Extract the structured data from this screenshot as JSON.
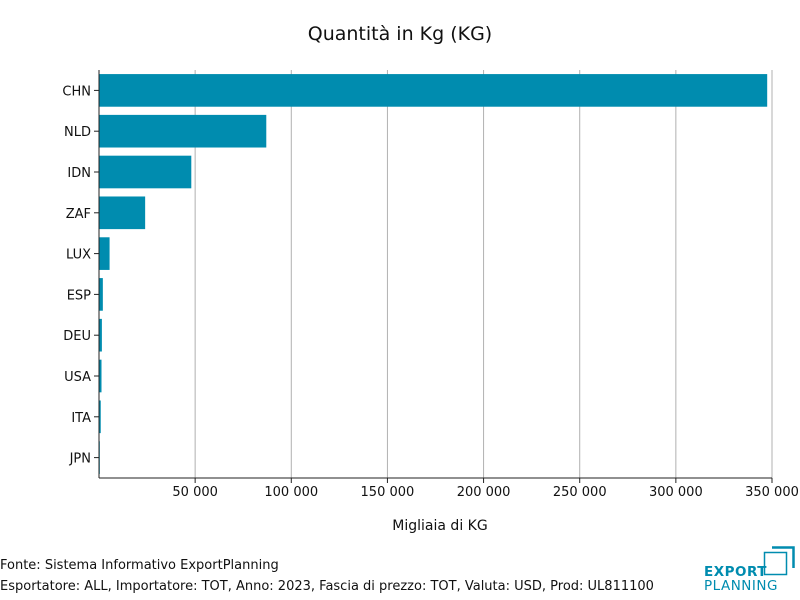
{
  "chart_data": {
    "type": "bar",
    "orientation": "horizontal",
    "title": "Quantità in Kg (KG)",
    "xlabel": "Migliaia di KG",
    "ylabel": "",
    "categories": [
      "CHN",
      "NLD",
      "IDN",
      "ZAF",
      "LUX",
      "ESP",
      "DEU",
      "USA",
      "ITA",
      "JPN"
    ],
    "values": [
      347500,
      87000,
      48000,
      24000,
      5500,
      2000,
      1500,
      1300,
      900,
      300
    ],
    "xlim": [
      0,
      350000
    ],
    "xticks": [
      50000,
      100000,
      150000,
      200000,
      250000,
      300000,
      350000
    ],
    "xtick_labels": [
      "50 000",
      "100 000",
      "150 000",
      "200 000",
      "250 000",
      "300 000",
      "350 000"
    ],
    "grid": "vertical",
    "bar_color": "#008caf"
  },
  "footer": {
    "source": "Fonte: Sistema Informativo ExportPlanning",
    "details": "Esportatore: ALL, Importatore: TOT, Anno: 2023, Fascia di prezzo: TOT, Valuta: USD, Prod: UL811100"
  },
  "logo": {
    "line1": "EXPORT",
    "line2": "PLANNING",
    "color": "#008caf"
  }
}
